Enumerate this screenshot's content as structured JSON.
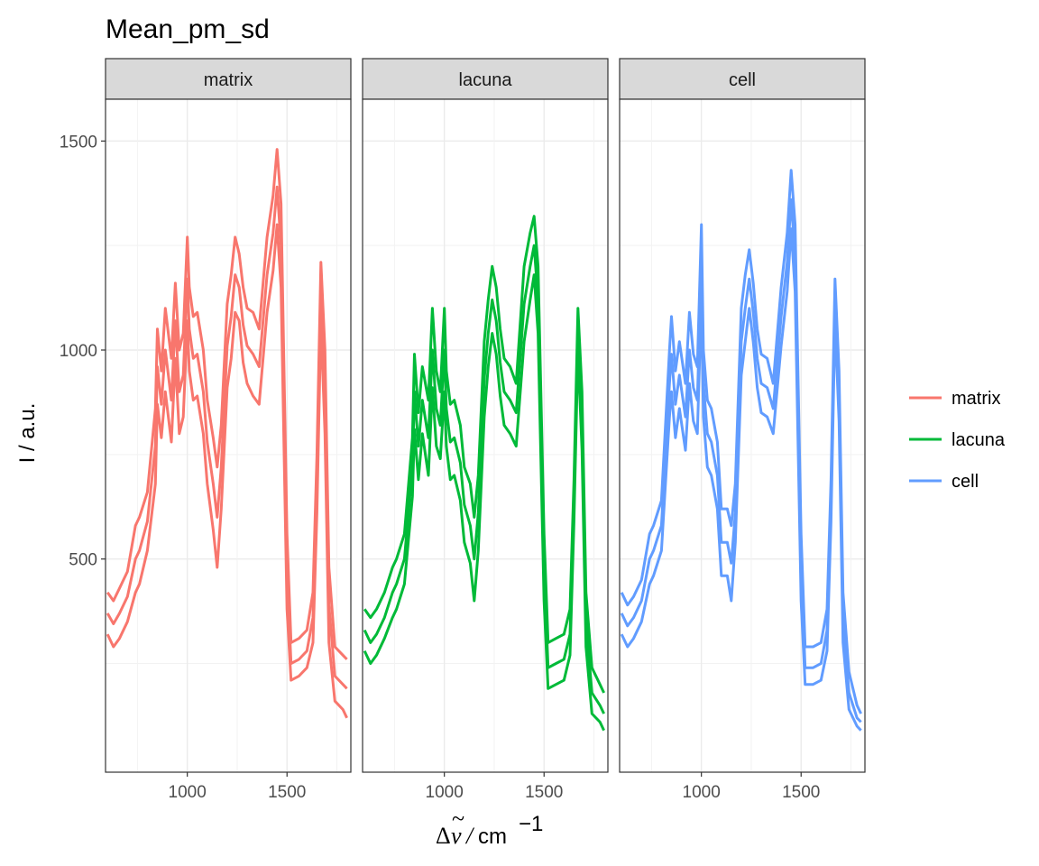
{
  "chart_data": {
    "type": "line",
    "title": "Mean_pm_sd",
    "ylabel": "I / a.u.",
    "xlabel_parts": {
      "delta": "Δ",
      "nu": "ν",
      "tilde": "~",
      "slash": "/",
      "unit": "cm",
      "exp": "−1"
    },
    "xlim": [
      590,
      1820
    ],
    "ylim": [
      -10,
      1600
    ],
    "x_ticks": [
      1000,
      1500
    ],
    "x_tick_labels": [
      "1000",
      "1500"
    ],
    "y_ticks": [
      500,
      1000,
      1500
    ],
    "y_tick_labels": [
      "500",
      "1000",
      "1500"
    ],
    "legend_position": "right",
    "grid": true,
    "panels": [
      {
        "name": "matrix",
        "color": "#F8766D",
        "series": [
          {
            "role": "upper",
            "x": [
              600,
              630,
              660,
              700,
              740,
              760,
              800,
              840,
              850,
              870,
              890,
              920,
              940,
              960,
              980,
              1000,
              1010,
              1030,
              1050,
              1080,
              1100,
              1130,
              1150,
              1170,
              1200,
              1220,
              1240,
              1260,
              1280,
              1300,
              1330,
              1360,
              1400,
              1430,
              1450,
              1470,
              1500,
              1520,
              1560,
              1600,
              1630,
              1650,
              1670,
              1690,
              1710,
              1740,
              1780,
              1800
            ],
            "y": [
              420,
              400,
              430,
              470,
              580,
              600,
              660,
              860,
              1050,
              950,
              1100,
              980,
              1160,
              1000,
              1040,
              1270,
              1150,
              1080,
              1090,
              1000,
              880,
              790,
              720,
              820,
              1110,
              1180,
              1270,
              1230,
              1150,
              1100,
              1090,
              1050,
              1270,
              1370,
              1480,
              1350,
              560,
              300,
              310,
              330,
              420,
              750,
              1210,
              1000,
              480,
              290,
              270,
              260
            ]
          },
          {
            "role": "mean",
            "x": [
              600,
              630,
              660,
              700,
              740,
              760,
              800,
              840,
              850,
              870,
              890,
              920,
              940,
              960,
              980,
              1000,
              1010,
              1030,
              1050,
              1080,
              1100,
              1130,
              1150,
              1170,
              1200,
              1220,
              1240,
              1260,
              1280,
              1300,
              1330,
              1360,
              1400,
              1430,
              1450,
              1470,
              1500,
              1520,
              1560,
              1600,
              1630,
              1650,
              1670,
              1690,
              1710,
              1740,
              1780,
              1800
            ],
            "y": [
              370,
              345,
              370,
              410,
              500,
              520,
              590,
              770,
              960,
              870,
              1000,
              880,
              1070,
              900,
              940,
              1170,
              1050,
              980,
              990,
              900,
              780,
              680,
              600,
              720,
              1010,
              1080,
              1180,
              1150,
              1060,
              1010,
              990,
              960,
              1180,
              1280,
              1390,
              1250,
              470,
              250,
              260,
              280,
              360,
              680,
              1140,
              900,
              390,
              220,
              200,
              190
            ]
          },
          {
            "role": "lower",
            "x": [
              600,
              630,
              660,
              700,
              740,
              760,
              800,
              840,
              850,
              870,
              890,
              920,
              940,
              960,
              980,
              1000,
              1010,
              1030,
              1050,
              1080,
              1100,
              1130,
              1150,
              1170,
              1200,
              1220,
              1240,
              1260,
              1280,
              1300,
              1330,
              1360,
              1400,
              1430,
              1450,
              1470,
              1500,
              1520,
              1560,
              1600,
              1630,
              1650,
              1670,
              1690,
              1710,
              1740,
              1780,
              1800
            ],
            "y": [
              320,
              290,
              310,
              350,
              420,
              440,
              520,
              680,
              870,
              790,
              900,
              780,
              980,
              800,
              840,
              1070,
              950,
              880,
              890,
              800,
              680,
              570,
              480,
              620,
              910,
              980,
              1090,
              1070,
              970,
              920,
              890,
              870,
              1090,
              1190,
              1300,
              1150,
              380,
              210,
              220,
              240,
              300,
              610,
              1070,
              800,
              300,
              160,
              140,
              120
            ]
          }
        ]
      },
      {
        "name": "lacuna",
        "color": "#00BA38",
        "series": [
          {
            "role": "upper",
            "x": [
              600,
              630,
              660,
              700,
              740,
              760,
              800,
              840,
              850,
              870,
              890,
              920,
              940,
              960,
              980,
              1000,
              1010,
              1030,
              1050,
              1080,
              1100,
              1130,
              1150,
              1170,
              1200,
              1220,
              1240,
              1260,
              1280,
              1300,
              1330,
              1360,
              1400,
              1430,
              1450,
              1470,
              1500,
              1520,
              1560,
              1600,
              1630,
              1650,
              1670,
              1690,
              1710,
              1740,
              1780,
              1800
            ],
            "y": [
              380,
              360,
              380,
              420,
              480,
              500,
              560,
              790,
              990,
              850,
              960,
              880,
              1100,
              950,
              900,
              1100,
              950,
              870,
              880,
              820,
              720,
              680,
              600,
              700,
              1020,
              1120,
              1200,
              1150,
              1050,
              980,
              960,
              920,
              1200,
              1280,
              1320,
              1200,
              560,
              300,
              310,
              320,
              380,
              690,
              1100,
              900,
              420,
              240,
              200,
              180
            ]
          },
          {
            "role": "mean",
            "x": [
              600,
              630,
              660,
              700,
              740,
              760,
              800,
              840,
              850,
              870,
              890,
              920,
              940,
              960,
              980,
              1000,
              1010,
              1030,
              1050,
              1080,
              1100,
              1130,
              1150,
              1170,
              1200,
              1220,
              1240,
              1260,
              1280,
              1300,
              1330,
              1360,
              1400,
              1430,
              1450,
              1470,
              1500,
              1520,
              1560,
              1600,
              1630,
              1650,
              1670,
              1690,
              1710,
              1740,
              1780,
              1800
            ],
            "y": [
              330,
              300,
              320,
              360,
              420,
              440,
              500,
              720,
              900,
              770,
              880,
              790,
              1000,
              860,
              820,
              1000,
              860,
              780,
              790,
              730,
              630,
              580,
              500,
              610,
              930,
              1040,
              1120,
              1070,
              970,
              900,
              880,
              850,
              1110,
              1200,
              1250,
              1120,
              480,
              240,
              250,
              260,
              320,
              640,
              1050,
              830,
              350,
              180,
              150,
              130
            ]
          },
          {
            "role": "lower",
            "x": [
              600,
              630,
              660,
              700,
              740,
              760,
              800,
              840,
              850,
              870,
              890,
              920,
              940,
              960,
              980,
              1000,
              1010,
              1030,
              1050,
              1080,
              1100,
              1130,
              1150,
              1170,
              1200,
              1220,
              1240,
              1260,
              1280,
              1300,
              1330,
              1360,
              1400,
              1430,
              1450,
              1470,
              1500,
              1520,
              1560,
              1600,
              1630,
              1650,
              1670,
              1690,
              1710,
              1740,
              1780,
              1800
            ],
            "y": [
              280,
              250,
              270,
              310,
              360,
              380,
              440,
              650,
              810,
              690,
              800,
              700,
              910,
              770,
              740,
              900,
              770,
              690,
              700,
              640,
              540,
              490,
              400,
              520,
              840,
              960,
              1040,
              990,
              890,
              820,
              800,
              770,
              1020,
              1120,
              1180,
              1040,
              400,
              190,
              200,
              210,
              270,
              590,
              1000,
              760,
              290,
              130,
              110,
              90
            ]
          }
        ]
      },
      {
        "name": "cell",
        "color": "#619CFF",
        "series": [
          {
            "role": "upper",
            "x": [
              600,
              630,
              660,
              700,
              740,
              760,
              800,
              840,
              850,
              870,
              890,
              920,
              940,
              960,
              980,
              1000,
              1010,
              1030,
              1050,
              1080,
              1100,
              1130,
              1150,
              1170,
              1200,
              1220,
              1240,
              1260,
              1280,
              1300,
              1330,
              1360,
              1400,
              1430,
              1450,
              1470,
              1500,
              1520,
              1560,
              1600,
              1630,
              1650,
              1670,
              1690,
              1710,
              1740,
              1780,
              1800
            ],
            "y": [
              420,
              390,
              410,
              450,
              560,
              580,
              640,
              1000,
              1080,
              950,
              1020,
              920,
              1090,
              990,
              960,
              1300,
              1000,
              880,
              860,
              780,
              620,
              620,
              580,
              680,
              1100,
              1180,
              1240,
              1160,
              1050,
              990,
              980,
              920,
              1150,
              1280,
              1430,
              1300,
              560,
              290,
              290,
              300,
              380,
              690,
              1170,
              950,
              420,
              230,
              150,
              130
            ]
          },
          {
            "role": "mean",
            "x": [
              600,
              630,
              660,
              700,
              740,
              760,
              800,
              840,
              850,
              870,
              890,
              920,
              940,
              960,
              980,
              1000,
              1010,
              1030,
              1050,
              1080,
              1100,
              1130,
              1150,
              1170,
              1200,
              1220,
              1240,
              1260,
              1280,
              1300,
              1330,
              1360,
              1400,
              1430,
              1450,
              1470,
              1500,
              1520,
              1560,
              1600,
              1630,
              1650,
              1670,
              1690,
              1710,
              1740,
              1780,
              1800
            ],
            "y": [
              370,
              340,
              360,
              400,
              500,
              520,
              580,
              920,
              990,
              870,
              940,
              840,
              1000,
              910,
              880,
              1210,
              920,
              800,
              780,
              700,
              540,
              540,
              490,
              610,
              1020,
              1100,
              1170,
              1090,
              980,
              920,
              910,
              860,
              1080,
              1210,
              1360,
              1220,
              480,
              240,
              240,
              250,
              330,
              640,
              1120,
              890,
              360,
              180,
              120,
              110
            ]
          },
          {
            "role": "lower",
            "x": [
              600,
              630,
              660,
              700,
              740,
              760,
              800,
              840,
              850,
              870,
              890,
              920,
              940,
              960,
              980,
              1000,
              1010,
              1030,
              1050,
              1080,
              1100,
              1130,
              1150,
              1170,
              1200,
              1220,
              1240,
              1260,
              1280,
              1300,
              1330,
              1360,
              1400,
              1430,
              1450,
              1470,
              1500,
              1520,
              1560,
              1600,
              1630,
              1650,
              1670,
              1690,
              1710,
              1740,
              1780,
              1800
            ],
            "y": [
              320,
              290,
              310,
              350,
              440,
              460,
              520,
              840,
              900,
              790,
              860,
              760,
              920,
              830,
              800,
              1120,
              840,
              720,
              700,
              620,
              460,
              460,
              400,
              540,
              940,
              1020,
              1100,
              1020,
              910,
              850,
              840,
              800,
              1010,
              1140,
              1290,
              1140,
              400,
              200,
              200,
              210,
              280,
              590,
              1070,
              830,
              300,
              140,
              100,
              90
            ]
          }
        ]
      }
    ],
    "legend": [
      {
        "label": "matrix",
        "color": "#F8766D"
      },
      {
        "label": "lacuna",
        "color": "#00BA38"
      },
      {
        "label": "cell",
        "color": "#619CFF"
      }
    ]
  }
}
